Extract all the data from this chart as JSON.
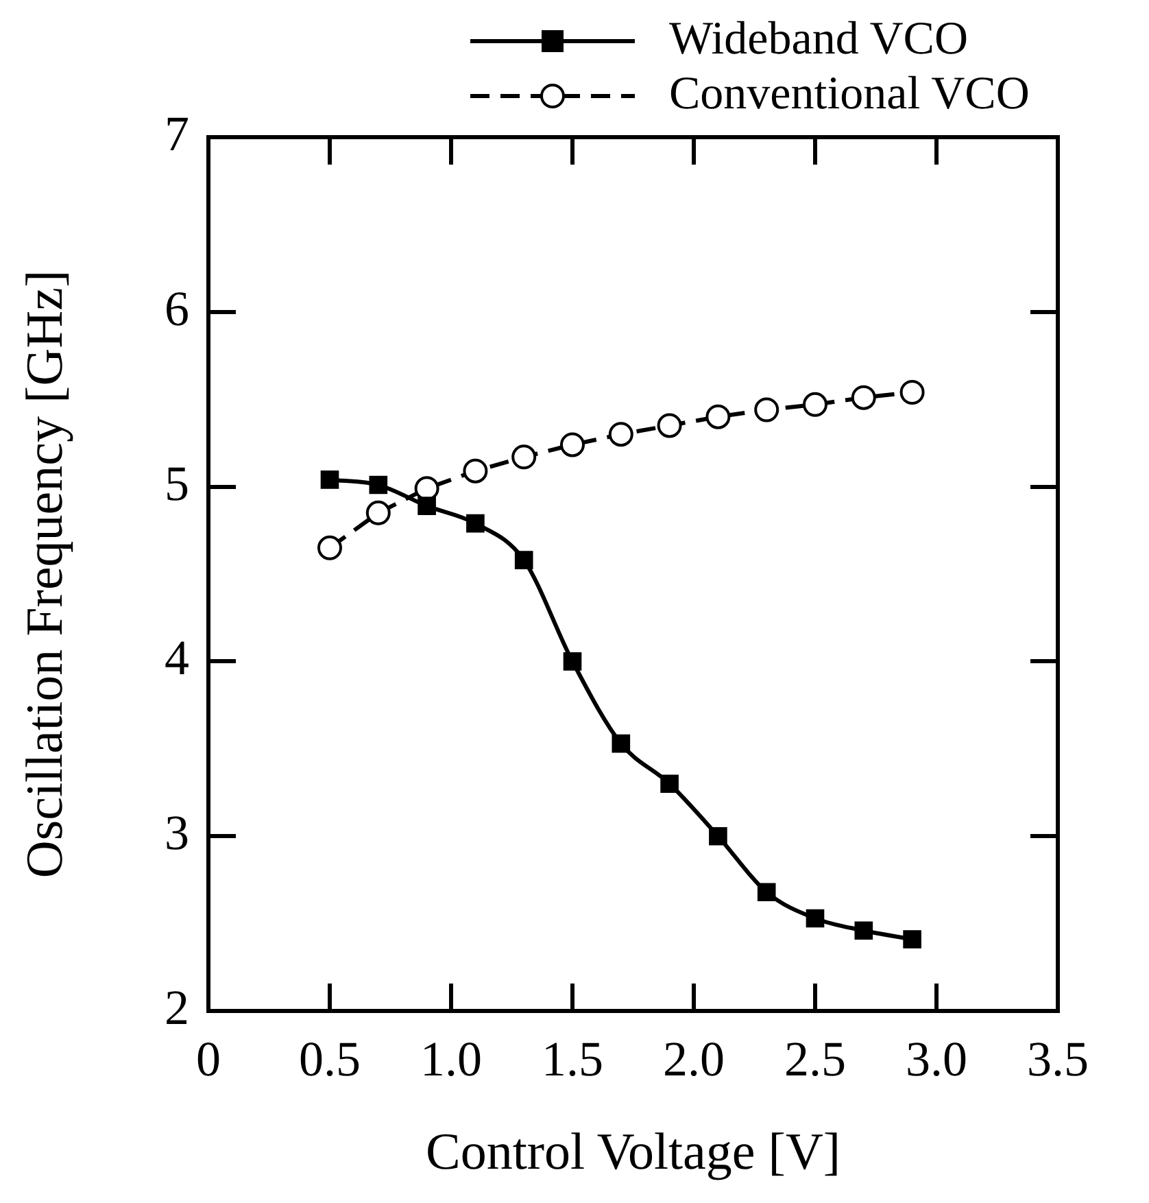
{
  "chart_data": {
    "type": "line",
    "xlabel": "Control Voltage [V]",
    "ylabel": "Oscillation Frequency [GHz]",
    "x": [
      0.5,
      0.7,
      0.9,
      1.1,
      1.3,
      1.5,
      1.7,
      1.9,
      2.1,
      2.3,
      2.5,
      2.7,
      2.9
    ],
    "series": [
      {
        "name": "Wideband VCO",
        "color": "#000000",
        "marker": "square",
        "line_style": "solid",
        "values": [
          5.04,
          5.01,
          4.89,
          4.79,
          4.58,
          4.0,
          3.53,
          3.3,
          3.0,
          2.68,
          2.53,
          2.46,
          2.41
        ]
      },
      {
        "name": "Conventional VCO",
        "color": "#000000",
        "marker": "circle",
        "line_style": "dashed",
        "values": [
          4.65,
          4.85,
          4.99,
          5.09,
          5.17,
          5.24,
          5.3,
          5.35,
          5.4,
          5.44,
          5.47,
          5.51,
          5.54
        ]
      }
    ],
    "xlim": [
      0,
      3.5
    ],
    "xticks": [
      0,
      0.5,
      {
        "value": 1,
        "label": "1.0"
      },
      1.5,
      {
        "value": 2,
        "label": "2.0"
      },
      2.5,
      {
        "value": 3,
        "label": "3.0"
      },
      3.5
    ],
    "ylim": [
      2,
      7
    ],
    "yticks": [
      2,
      3,
      4,
      5,
      6,
      7
    ],
    "grid": false,
    "legend": "top right"
  }
}
